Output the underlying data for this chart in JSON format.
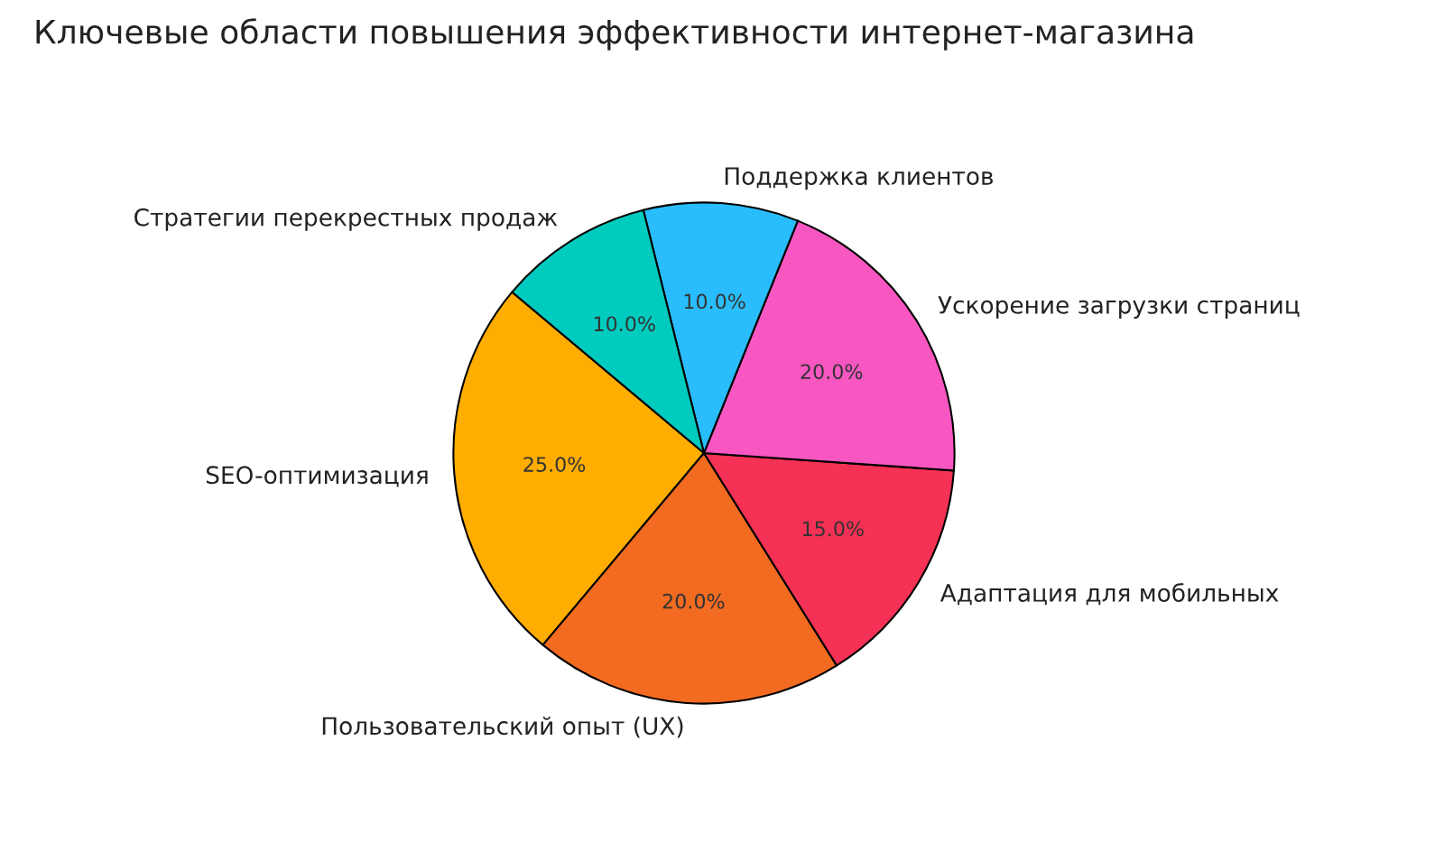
{
  "chart_data": {
    "type": "pie",
    "title": "Ключевые области повышения эффективности интернет-магазина",
    "categories": [
      "SEO-оптимизация",
      "Пользовательский опыт (UX)",
      "Адаптация для мобильных",
      "Ускорение загрузки страниц",
      "Поддержка клиентов",
      "Стратегии перекрестных продаж"
    ],
    "values": [
      25,
      20,
      15,
      20,
      10,
      10
    ],
    "value_labels": [
      "25.0%",
      "20.0%",
      "15.0%",
      "20.0%",
      "10.0%",
      "10.0%"
    ],
    "colors": [
      "#ffad00",
      "#f26b21",
      "#f53155",
      "#f857c1",
      "#29bdfd",
      "#00cbbf"
    ]
  }
}
